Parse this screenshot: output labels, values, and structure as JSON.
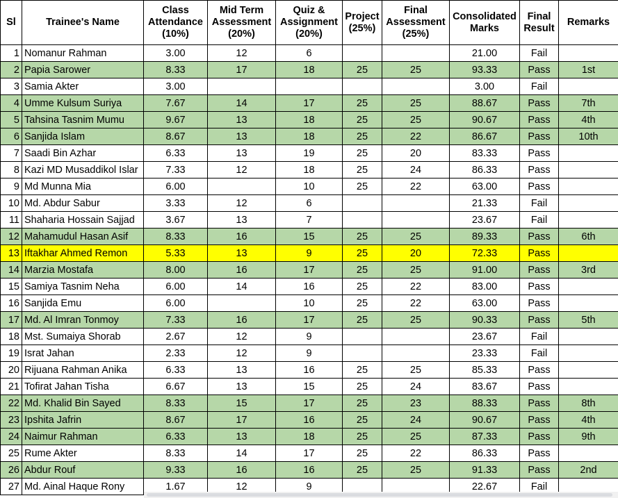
{
  "headers": [
    "Sl",
    "Trainee's Name",
    "Class Attendance (10%)",
    "Mid Term Assessment (20%)",
    "Quiz & Assignment (20%)",
    "Project (25%)",
    "Final Assessment (25%)",
    "Consolidated Marks",
    "Final Result",
    "Remarks"
  ],
  "colors": {
    "highlight_green": "#b6d7a8",
    "highlight_yellow": "#ffff00"
  },
  "rows": [
    {
      "sl": "1",
      "name": "Nomanur Rahman",
      "att": "3.00",
      "mid": "12",
      "quiz": "6",
      "proj": "",
      "final": "",
      "cons": "21.00",
      "result": "Fail",
      "remarks": "",
      "hl": ""
    },
    {
      "sl": "2",
      "name": "Papia Sarower",
      "att": "8.33",
      "mid": "17",
      "quiz": "18",
      "proj": "25",
      "final": "25",
      "cons": "93.33",
      "result": "Pass",
      "remarks": "1st",
      "hl": "green"
    },
    {
      "sl": "3",
      "name": "Samia Akter",
      "att": "3.00",
      "mid": "",
      "quiz": "",
      "proj": "",
      "final": "",
      "cons": "3.00",
      "result": "Fail",
      "remarks": "",
      "hl": ""
    },
    {
      "sl": "4",
      "name": "Umme Kulsum Suriya",
      "att": "7.67",
      "mid": "14",
      "quiz": "17",
      "proj": "25",
      "final": "25",
      "cons": "88.67",
      "result": "Pass",
      "remarks": "7th",
      "hl": "green"
    },
    {
      "sl": "5",
      "name": "Tahsina Tasnim Mumu",
      "att": "9.67",
      "mid": "13",
      "quiz": "18",
      "proj": "25",
      "final": "25",
      "cons": "90.67",
      "result": "Pass",
      "remarks": "4th",
      "hl": "green"
    },
    {
      "sl": "6",
      "name": "Sanjida Islam",
      "att": "8.67",
      "mid": "13",
      "quiz": "18",
      "proj": "25",
      "final": "22",
      "cons": "86.67",
      "result": "Pass",
      "remarks": "10th",
      "hl": "green"
    },
    {
      "sl": "7",
      "name": "Saadi Bin Azhar",
      "att": "6.33",
      "mid": "13",
      "quiz": "19",
      "proj": "25",
      "final": "20",
      "cons": "83.33",
      "result": "Pass",
      "remarks": "",
      "hl": ""
    },
    {
      "sl": "8",
      "name": "Kazi MD Musaddikol Islar",
      "att": "7.33",
      "mid": "12",
      "quiz": "18",
      "proj": "25",
      "final": "24",
      "cons": "86.33",
      "result": "Pass",
      "remarks": "",
      "hl": ""
    },
    {
      "sl": "9",
      "name": "Md Munna Mia",
      "att": "6.00",
      "mid": "",
      "quiz": "10",
      "proj": "25",
      "final": "22",
      "cons": "63.00",
      "result": "Pass",
      "remarks": "",
      "hl": ""
    },
    {
      "sl": "10",
      "name": "Md. Abdur Sabur",
      "att": "3.33",
      "mid": "12",
      "quiz": "6",
      "proj": "",
      "final": "",
      "cons": "21.33",
      "result": "Fail",
      "remarks": "",
      "hl": ""
    },
    {
      "sl": "11",
      "name": "Shaharia Hossain Sajjad",
      "att": "3.67",
      "mid": "13",
      "quiz": "7",
      "proj": "",
      "final": "",
      "cons": "23.67",
      "result": "Fail",
      "remarks": "",
      "hl": ""
    },
    {
      "sl": "12",
      "name": "Mahamudul Hasan Asif",
      "att": "8.33",
      "mid": "16",
      "quiz": "15",
      "proj": "25",
      "final": "25",
      "cons": "89.33",
      "result": "Pass",
      "remarks": "6th",
      "hl": "green"
    },
    {
      "sl": "13",
      "name": "Iftakhar Ahmed Remon",
      "att": "5.33",
      "mid": "13",
      "quiz": "9",
      "proj": "25",
      "final": "20",
      "cons": "72.33",
      "result": "Pass",
      "remarks": "",
      "hl": "yellow"
    },
    {
      "sl": "14",
      "name": "Marzia Mostafa",
      "att": "8.00",
      "mid": "16",
      "quiz": "17",
      "proj": "25",
      "final": "25",
      "cons": "91.00",
      "result": "Pass",
      "remarks": "3rd",
      "hl": "green"
    },
    {
      "sl": "15",
      "name": "Samiya Tasnim Neha",
      "att": "6.00",
      "mid": "14",
      "quiz": "16",
      "proj": "25",
      "final": "22",
      "cons": "83.00",
      "result": "Pass",
      "remarks": "",
      "hl": ""
    },
    {
      "sl": "16",
      "name": "Sanjida Emu",
      "att": "6.00",
      "mid": "",
      "quiz": "10",
      "proj": "25",
      "final": "22",
      "cons": "63.00",
      "result": "Pass",
      "remarks": "",
      "hl": ""
    },
    {
      "sl": "17",
      "name": "Md. Al Imran Tonmoy",
      "att": "7.33",
      "mid": "16",
      "quiz": "17",
      "proj": "25",
      "final": "25",
      "cons": "90.33",
      "result": "Pass",
      "remarks": "5th",
      "hl": "green"
    },
    {
      "sl": "18",
      "name": "Mst. Sumaiya Shorab",
      "att": "2.67",
      "mid": "12",
      "quiz": "9",
      "proj": "",
      "final": "",
      "cons": "23.67",
      "result": "Fail",
      "remarks": "",
      "hl": ""
    },
    {
      "sl": "19",
      "name": "Israt Jahan",
      "att": "2.33",
      "mid": "12",
      "quiz": "9",
      "proj": "",
      "final": "",
      "cons": "23.33",
      "result": "Fail",
      "remarks": "",
      "hl": ""
    },
    {
      "sl": "20",
      "name": "Rijuana Rahman Anika",
      "att": "6.33",
      "mid": "13",
      "quiz": "16",
      "proj": "25",
      "final": "25",
      "cons": "85.33",
      "result": "Pass",
      "remarks": "",
      "hl": ""
    },
    {
      "sl": "21",
      "name": "Tofirat Jahan Tisha",
      "att": "6.67",
      "mid": "13",
      "quiz": "15",
      "proj": "25",
      "final": "24",
      "cons": "83.67",
      "result": "Pass",
      "remarks": "",
      "hl": ""
    },
    {
      "sl": "22",
      "name": "Md. Khalid Bin Sayed",
      "att": "8.33",
      "mid": "15",
      "quiz": "17",
      "proj": "25",
      "final": "23",
      "cons": "88.33",
      "result": "Pass",
      "remarks": "8th",
      "hl": "green"
    },
    {
      "sl": "23",
      "name": "Ipshita Jafrin",
      "att": "8.67",
      "mid": "17",
      "quiz": "16",
      "proj": "25",
      "final": "24",
      "cons": "90.67",
      "result": "Pass",
      "remarks": "4th",
      "hl": "green"
    },
    {
      "sl": "24",
      "name": "Naimur Rahman",
      "att": "6.33",
      "mid": "13",
      "quiz": "18",
      "proj": "25",
      "final": "25",
      "cons": "87.33",
      "result": "Pass",
      "remarks": "9th",
      "hl": "green"
    },
    {
      "sl": "25",
      "name": "Rume Akter",
      "att": "8.33",
      "mid": "14",
      "quiz": "17",
      "proj": "25",
      "final": "22",
      "cons": "86.33",
      "result": "Pass",
      "remarks": "",
      "hl": ""
    },
    {
      "sl": "26",
      "name": "Abdur Rouf",
      "att": "9.33",
      "mid": "16",
      "quiz": "16",
      "proj": "25",
      "final": "25",
      "cons": "91.33",
      "result": "Pass",
      "remarks": "2nd",
      "hl": "green"
    },
    {
      "sl": "27",
      "name": "Md. Ainal Haque Rony",
      "att": "1.67",
      "mid": "12",
      "quiz": "9",
      "proj": "",
      "final": "",
      "cons": "22.67",
      "result": "Fail",
      "remarks": "",
      "hl": ""
    }
  ]
}
